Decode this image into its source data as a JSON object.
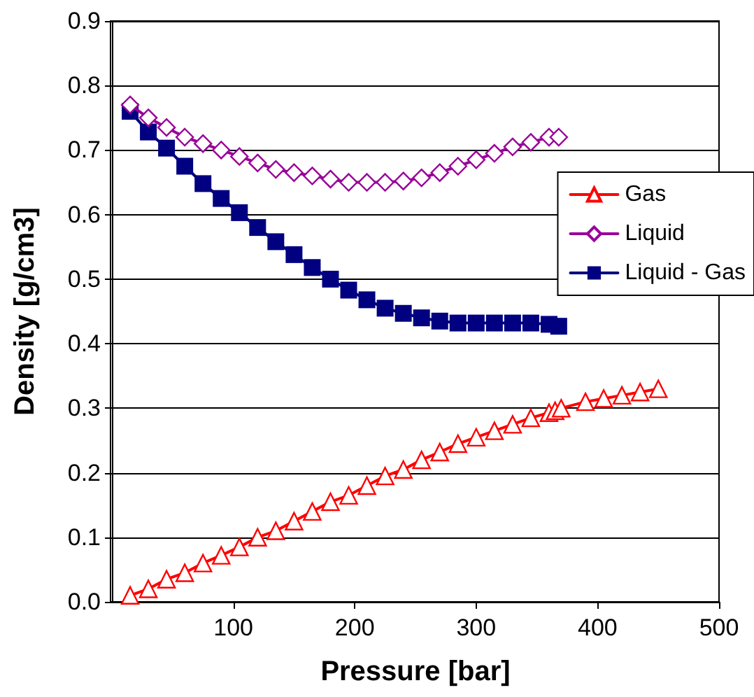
{
  "chart_data": {
    "type": "line",
    "xlabel": "Pressure [bar]",
    "ylabel": "Density [g/cm3]",
    "xlim": [
      0,
      500
    ],
    "xticks": [
      100,
      200,
      300,
      400,
      500
    ],
    "ylim": [
      0,
      0.9
    ],
    "yticks": [
      "0.0",
      0.1,
      0.2,
      0.3,
      0.4,
      0.5,
      0.6,
      0.7,
      0.8,
      0.9
    ],
    "grid": "y",
    "legend": "right",
    "line_style": "solid",
    "series": [
      {
        "name": "Gas",
        "color": "#ff0000",
        "marker": "triangle",
        "x": [
          15,
          30,
          45,
          60,
          75,
          90,
          105,
          120,
          135,
          150,
          165,
          180,
          195,
          210,
          225,
          240,
          255,
          270,
          285,
          300,
          315,
          330,
          345,
          360,
          365,
          370,
          390,
          405,
          420,
          435,
          450
        ],
        "values": [
          0.01,
          0.02,
          0.035,
          0.045,
          0.06,
          0.072,
          0.085,
          0.1,
          0.11,
          0.125,
          0.14,
          0.155,
          0.165,
          0.18,
          0.195,
          0.205,
          0.22,
          0.232,
          0.245,
          0.255,
          0.265,
          0.275,
          0.285,
          0.293,
          0.296,
          0.3,
          0.31,
          0.315,
          0.32,
          0.325,
          0.33
        ]
      },
      {
        "name": "Liquid",
        "color": "#990099",
        "marker": "diamond",
        "x": [
          15,
          30,
          45,
          60,
          75,
          90,
          105,
          120,
          135,
          150,
          165,
          180,
          195,
          210,
          225,
          240,
          255,
          270,
          285,
          300,
          315,
          330,
          345,
          360,
          368
        ],
        "values": [
          0.77,
          0.75,
          0.735,
          0.72,
          0.71,
          0.7,
          0.69,
          0.68,
          0.67,
          0.665,
          0.66,
          0.655,
          0.65,
          0.65,
          0.65,
          0.652,
          0.657,
          0.665,
          0.675,
          0.685,
          0.695,
          0.705,
          0.712,
          0.72,
          0.72
        ]
      },
      {
        "name": "Liquid - Gas",
        "color": "#000080",
        "marker": "square",
        "x": [
          15,
          30,
          45,
          60,
          75,
          90,
          105,
          120,
          135,
          150,
          165,
          180,
          195,
          210,
          225,
          240,
          255,
          270,
          285,
          300,
          315,
          330,
          345,
          360,
          368
        ],
        "values": [
          0.76,
          0.728,
          0.703,
          0.675,
          0.648,
          0.625,
          0.603,
          0.58,
          0.558,
          0.538,
          0.518,
          0.5,
          0.483,
          0.468,
          0.455,
          0.447,
          0.44,
          0.435,
          0.432,
          0.432,
          0.432,
          0.432,
          0.432,
          0.43,
          0.427
        ]
      }
    ]
  }
}
